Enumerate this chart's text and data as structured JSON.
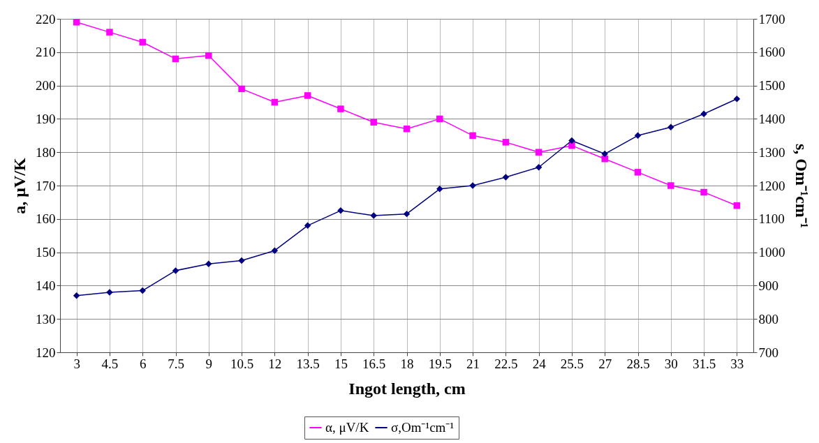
{
  "chart_data": {
    "type": "line",
    "xlabel": "Ingot length, cm",
    "ylabel": "a, μV/K",
    "y2label": "s, Om⁻¹cm⁻¹",
    "categories": [
      "3",
      "4.5",
      "6",
      "7.5",
      "9",
      "10.5",
      "12",
      "13.5",
      "15",
      "16.5",
      "18",
      "19.5",
      "21",
      "22.5",
      "24",
      "25.5",
      "27",
      "28.5",
      "30",
      "31.5",
      "33"
    ],
    "series": [
      {
        "name": "α, μV/K",
        "color": "#ff00ff",
        "marker": "square",
        "values": [
          219,
          216,
          213,
          208,
          209,
          199,
          195,
          197,
          193,
          189,
          187,
          190,
          185,
          183,
          180,
          182,
          178,
          174,
          170,
          168,
          164
        ]
      },
      {
        "name": "σ,Om⁻¹cm⁻¹",
        "color": "#000080",
        "marker": "diamond",
        "axis": "y2",
        "values": [
          870,
          880,
          885,
          945,
          965,
          975,
          1005,
          1080,
          1125,
          1110,
          1115,
          1190,
          1200,
          1225,
          1255,
          1335,
          1295,
          1350,
          1375,
          1415,
          1460
        ]
      }
    ],
    "ylim": [
      120,
      220
    ],
    "yticks": [
      120,
      130,
      140,
      150,
      160,
      170,
      180,
      190,
      200,
      210,
      220
    ],
    "y2lim": [
      700,
      1700
    ],
    "y2ticks": [
      700,
      800,
      900,
      1000,
      1100,
      1200,
      1300,
      1400,
      1500,
      1600,
      1700
    ],
    "grid": true,
    "legend": "bottom",
    "line_style": "solid"
  }
}
